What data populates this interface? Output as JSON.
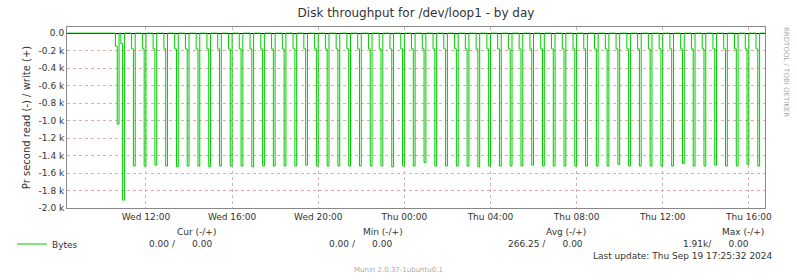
{
  "chart_data": {
    "type": "line",
    "title": "Disk throughput for /dev/loop1 - by day",
    "y_label": "Pr second read (-) / write (+)",
    "categories": [
      null,
      null,
      null,
      null,
      null,
      null,
      null,
      null,
      null,
      null,
      null,
      null,
      null,
      null,
      null,
      null,
      null,
      null,
      null,
      null,
      null,
      null,
      null,
      null,
      null,
      null,
      null,
      null,
      null,
      null,
      null,
      null,
      null,
      null,
      null,
      null,
      null,
      null,
      null,
      null,
      null,
      null,
      null,
      null,
      "Wed 12:00",
      null,
      null,
      null,
      null,
      null,
      null,
      null,
      null,
      null,
      null,
      null,
      null,
      null,
      null,
      null,
      null,
      null,
      null,
      null,
      null,
      null,
      null,
      null,
      null,
      null,
      null,
      null,
      null,
      null,
      null,
      null,
      null,
      null,
      null,
      null,
      null,
      null,
      null,
      null,
      null,
      null,
      null,
      null,
      null,
      null,
      null,
      null,
      "Wed 16:00",
      null,
      null,
      null,
      null,
      null,
      null,
      null,
      null,
      null,
      null,
      null,
      null,
      null,
      null,
      null,
      null,
      null,
      null,
      null,
      null,
      null,
      null,
      null,
      null,
      null,
      null,
      null,
      null,
      null,
      null,
      null,
      null,
      null,
      null,
      null,
      null,
      null,
      null,
      null,
      null,
      null,
      null,
      null,
      null,
      null,
      null,
      null,
      "Wed 20:00",
      null,
      null,
      null,
      null,
      null,
      null,
      null,
      null,
      null,
      null,
      null,
      null,
      null,
      null,
      null,
      null,
      null,
      null,
      null,
      null,
      null,
      null,
      null,
      null,
      null,
      null,
      null,
      null,
      null,
      null,
      null,
      null,
      null,
      null,
      null,
      null,
      null,
      null,
      null,
      null,
      null,
      null,
      null,
      null,
      null,
      null,
      null,
      "Thu 00:00",
      null,
      null,
      null,
      null,
      null,
      null,
      null,
      null,
      null,
      null,
      null,
      null,
      null,
      null,
      null,
      null,
      null,
      null,
      null,
      null,
      null,
      null,
      null,
      null,
      null,
      null,
      null,
      null,
      null,
      null,
      null,
      null,
      null,
      null,
      null,
      null,
      null,
      null,
      null,
      null,
      null,
      null,
      null,
      null,
      null,
      null,
      null,
      "Thu 04:00",
      null,
      null,
      null,
      null,
      null,
      null,
      null,
      null,
      null,
      null,
      null,
      null,
      null,
      null,
      null,
      null,
      null,
      null,
      null,
      null,
      null,
      null,
      null,
      null,
      null,
      null,
      null,
      null,
      null,
      null,
      null,
      null,
      null,
      null,
      null,
      null,
      null,
      null,
      null,
      null,
      null,
      null,
      null,
      null,
      null,
      null,
      null,
      "Thu 08:00",
      null,
      null,
      null,
      null,
      null,
      null,
      null,
      null,
      null,
      null,
      null,
      null,
      null,
      null,
      null,
      null,
      null,
      null,
      null,
      null,
      null,
      null,
      null,
      null,
      null,
      null,
      null,
      null,
      null,
      null,
      null,
      null,
      null,
      null,
      null,
      null,
      null,
      null,
      null,
      null,
      null,
      null,
      null,
      null,
      null,
      null,
      null,
      "Thu 12:00",
      null,
      null,
      null,
      null,
      null,
      null,
      null,
      null,
      null,
      null,
      null,
      null,
      null,
      null,
      null,
      null,
      null,
      null,
      null,
      null,
      null,
      null,
      null,
      null,
      null,
      null,
      null,
      null,
      null,
      null,
      null,
      null,
      null,
      null,
      null,
      null,
      null,
      null,
      null,
      null,
      null,
      null,
      null,
      null,
      null,
      null,
      null,
      "Thu 16:00",
      null,
      null,
      null,
      null,
      null,
      null,
      null,
      null,
      null
    ],
    "series": [
      {
        "name": "Bytes",
        "color": "#00cc00",
        "values": [
          0,
          0,
          0,
          0,
          0,
          0,
          0,
          0,
          0,
          0,
          0,
          0,
          0,
          0,
          0,
          0,
          0,
          0,
          0,
          0,
          0,
          0,
          0,
          0,
          0,
          0,
          0,
          -150,
          -1040,
          0,
          -120,
          -1910,
          0,
          0,
          0,
          0,
          -180,
          -1520,
          0,
          0,
          0,
          0,
          -180,
          -1520,
          0,
          0,
          0,
          0,
          -180,
          -1510,
          0,
          0,
          0,
          0,
          -180,
          -1520,
          0,
          0,
          0,
          0,
          -180,
          -1530,
          0,
          0,
          0,
          0,
          -180,
          -1520,
          0,
          0,
          0,
          0,
          -180,
          -1520,
          0,
          0,
          0,
          0,
          -180,
          -1530,
          0,
          0,
          0,
          0,
          -180,
          -1520,
          0,
          0,
          0,
          0,
          -180,
          -1520,
          0,
          0,
          0,
          0,
          -180,
          -1520,
          0,
          0,
          0,
          0,
          -180,
          -1530,
          0,
          0,
          0,
          0,
          -180,
          -1520,
          0,
          0,
          0,
          0,
          -180,
          -1520,
          0,
          0,
          0,
          0,
          -180,
          -1520,
          0,
          0,
          0,
          0,
          -180,
          -1520,
          0,
          0,
          0,
          0,
          -180,
          -1510,
          0,
          0,
          0,
          0,
          -180,
          -1520,
          0,
          0,
          0,
          0,
          -180,
          -1520,
          0,
          0,
          0,
          0,
          -180,
          -1520,
          0,
          0,
          0,
          0,
          -180,
          -1520,
          0,
          0,
          0,
          0,
          -180,
          -1520,
          0,
          0,
          0,
          0,
          -180,
          -1520,
          0,
          0,
          0,
          0,
          -180,
          -1520,
          0,
          0,
          0,
          0,
          -180,
          -1530,
          0,
          0,
          0,
          0,
          -180,
          -1520,
          0,
          0,
          0,
          0,
          -180,
          -1520,
          0,
          0,
          0,
          0,
          -180,
          -1480,
          0,
          0,
          0,
          0,
          -180,
          -1520,
          0,
          0,
          0,
          0,
          -180,
          -1520,
          0,
          0,
          0,
          0,
          -180,
          -1520,
          0,
          0,
          0,
          0,
          -180,
          -1520,
          0,
          0,
          0,
          0,
          -180,
          -1530,
          0,
          0,
          0,
          0,
          -180,
          -1520,
          0,
          0,
          0,
          0,
          -180,
          -1520,
          0,
          0,
          0,
          0,
          -180,
          -1520,
          0,
          0,
          0,
          0,
          -180,
          -1520,
          0,
          0,
          0,
          0,
          -180,
          -1510,
          0,
          0,
          0,
          0,
          -180,
          -1520,
          0,
          0,
          0,
          0,
          -180,
          -1520,
          0,
          0,
          0,
          0,
          -180,
          -1520,
          0,
          0,
          0,
          0,
          -180,
          -1520,
          0,
          0,
          0,
          0,
          -180,
          -1520,
          0,
          0,
          0,
          0,
          -180,
          -1520,
          0,
          0,
          0,
          0,
          -180,
          -1520,
          0,
          0,
          0,
          0,
          -180,
          -1500,
          0,
          0,
          0,
          0,
          -180,
          -1520,
          0,
          0,
          0,
          0,
          -180,
          -1520,
          0,
          0,
          0,
          0,
          -180,
          -1520,
          0,
          0,
          0,
          0,
          -180,
          -1520,
          0,
          0,
          0,
          0,
          -180,
          -1520,
          0,
          0,
          0,
          0,
          -180,
          -1490,
          0,
          0,
          0,
          0,
          -180,
          -1520,
          0,
          0,
          0,
          0,
          -180,
          -1520,
          0,
          0,
          0,
          0,
          -180,
          -1510,
          0,
          0,
          0,
          0,
          -180,
          -1520,
          0,
          0,
          0,
          0,
          -180,
          -1520,
          0,
          0,
          0,
          0,
          -180,
          -1500,
          0,
          0,
          0,
          0,
          -180,
          -1520,
          0,
          0,
          0,
          0
        ]
      }
    ],
    "ylim": [
      -2000,
      70
    ],
    "yticks": [
      {
        "value": 0,
        "label": "0.0"
      },
      {
        "value": -200,
        "label": "-0.2 k"
      },
      {
        "value": -400,
        "label": "-0.4 k"
      },
      {
        "value": -600,
        "label": "-0.6 k"
      },
      {
        "value": -800,
        "label": "-0.8 k"
      },
      {
        "value": -1000,
        "label": "-1.0 k"
      },
      {
        "value": -1200,
        "label": "-1.2 k"
      },
      {
        "value": -1400,
        "label": "-1.4 k"
      },
      {
        "value": -1600,
        "label": "-1.6 k"
      },
      {
        "value": -1800,
        "label": "-1.8 k"
      },
      {
        "value": -2000,
        "label": "-2.0 k"
      }
    ],
    "grid": true,
    "legend": "bottom",
    "footer": {
      "headers": [
        "Cur (-/+)",
        "Min (-/+)",
        "Avg (-/+)",
        "Max (-/+)"
      ],
      "values": [
        "0.00 /      0.00",
        "0.00 /      0.00",
        "266.25 /      0.00",
        "1.91k/      0.00"
      ],
      "last_update": "Last update: Thu Sep 19 17:25:32 2024",
      "version": "Munin 2.0.37-1ubuntu0.1"
    },
    "watermark": "RRDTOOL / TOBI OETIKER"
  }
}
